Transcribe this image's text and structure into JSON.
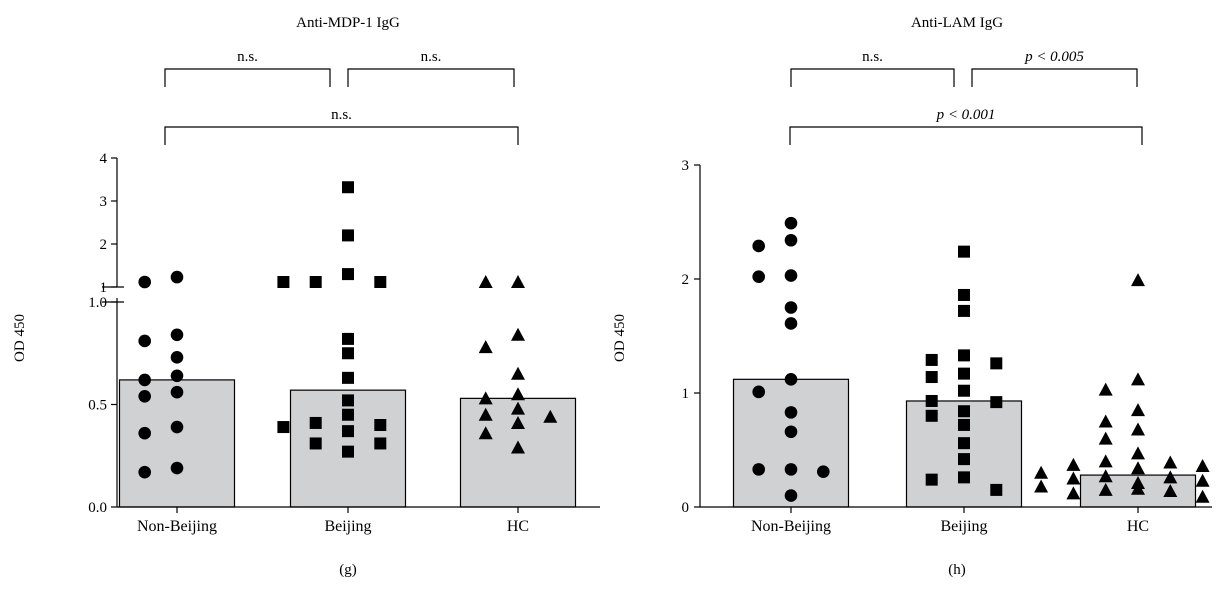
{
  "chart_data": [
    {
      "type": "bar",
      "title": "Anti-MDP-1 IgG",
      "ylabel": "OD 450",
      "panel_label": "(g)",
      "categories": [
        "Non-Beijing",
        "Beijing",
        "HC"
      ],
      "bar_values": [
        0.62,
        0.57,
        0.53
      ],
      "marker_shapes": [
        "circle",
        "square",
        "triangle"
      ],
      "broken_y_axis": true,
      "ylim_lower": [
        0,
        1.0
      ],
      "ylim_upper": [
        1,
        4
      ],
      "yticks_lower": [
        {
          "v": 0.0,
          "label": "0.0"
        },
        {
          "v": 0.5,
          "label": "0.5"
        },
        {
          "v": 1.0,
          "label": "1.0"
        }
      ],
      "yticks_upper": [
        {
          "v": 1,
          "label": "1"
        },
        {
          "v": 2,
          "label": "2"
        },
        {
          "v": 3,
          "label": "3"
        },
        {
          "v": 4,
          "label": "4"
        }
      ],
      "points": [
        [
          1.23,
          1.05,
          0.84,
          0.81,
          0.73,
          0.64,
          0.62,
          0.56,
          0.54,
          0.39,
          0.36,
          0.19,
          0.17
        ],
        [
          3.32,
          2.2,
          1.1,
          1.1,
          1.1,
          1.3,
          0.82,
          0.75,
          0.63,
          0.52,
          0.45,
          0.4,
          0.39,
          0.41,
          0.37,
          0.31,
          0.31,
          0.27
        ],
        [
          1.1,
          1.1,
          0.84,
          0.78,
          0.65,
          0.55,
          0.53,
          0.48,
          0.44,
          0.45,
          0.41,
          0.36,
          0.29
        ]
      ],
      "comparisons": [
        {
          "from": 0,
          "to": 1,
          "level": 0,
          "label": "n.s.",
          "italic": false
        },
        {
          "from": 1,
          "to": 2,
          "level": 0,
          "label": "n.s.",
          "italic": false
        },
        {
          "from": 0,
          "to": 2,
          "level": 1,
          "label": "n.s.",
          "italic": false
        }
      ]
    },
    {
      "type": "bar",
      "title": "Anti-LAM IgG",
      "ylabel": "OD 450",
      "panel_label": "(h)",
      "categories": [
        "Non-Beijing",
        "Beijing",
        "HC"
      ],
      "bar_values": [
        1.12,
        0.93,
        0.28
      ],
      "marker_shapes": [
        "circle",
        "square",
        "triangle"
      ],
      "broken_y_axis": false,
      "ylim": [
        0,
        3
      ],
      "yticks": [
        {
          "v": 0,
          "label": "0"
        },
        {
          "v": 1,
          "label": "1"
        },
        {
          "v": 2,
          "label": "2"
        },
        {
          "v": 3,
          "label": "3"
        }
      ],
      "points": [
        [
          2.49,
          2.34,
          2.29,
          2.03,
          2.02,
          1.75,
          1.61,
          1.12,
          1.01,
          0.83,
          0.66,
          0.33,
          0.31,
          0.33,
          0.1
        ],
        [
          2.24,
          1.86,
          1.72,
          1.33,
          1.29,
          1.26,
          1.17,
          1.14,
          1.02,
          0.93,
          0.92,
          0.84,
          0.8,
          0.72,
          0.56,
          0.42,
          0.26,
          0.24,
          0.15
        ],
        [
          1.99,
          1.12,
          1.03,
          0.85,
          0.75,
          0.68,
          0.6,
          0.47,
          0.4,
          0.39,
          0.37,
          0.36,
          0.34,
          0.3,
          0.27,
          0.26,
          0.25,
          0.23,
          0.21,
          0.2,
          0.18,
          0.16,
          0.15,
          0.14,
          0.12,
          0.09
        ]
      ],
      "comparisons": [
        {
          "from": 0,
          "to": 1,
          "level": 0,
          "label": "n.s.",
          "italic": false
        },
        {
          "from": 1,
          "to": 2,
          "level": 0,
          "label": "p < 0.005",
          "italic": true
        },
        {
          "from": 0,
          "to": 2,
          "level": 1,
          "label": "p < 0.001",
          "italic": true
        }
      ]
    }
  ]
}
